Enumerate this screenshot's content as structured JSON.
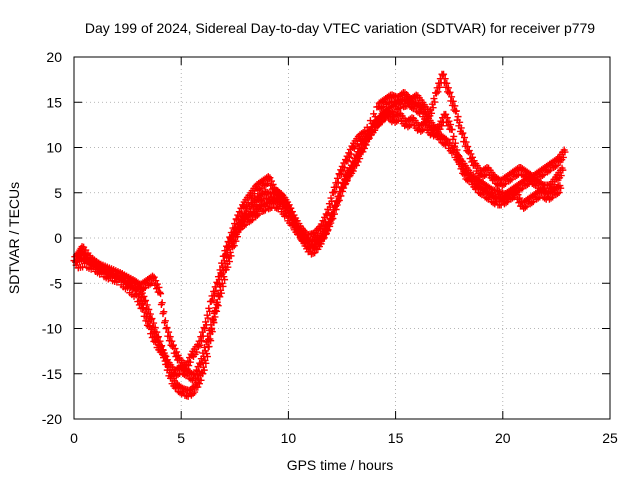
{
  "chart_data": {
    "type": "scatter",
    "title": "Day 199 of 2024, Sidereal Day-to-day VTEC variation (SDTVAR) for receiver p779",
    "xlabel": "GPS time / hours",
    "ylabel": "SDTVAR / TECUs",
    "xlim": [
      0,
      25
    ],
    "ylim": [
      -20,
      20
    ],
    "x_ticks": [
      0,
      5,
      10,
      15,
      20,
      25
    ],
    "y_ticks": [
      -20,
      -15,
      -10,
      -5,
      0,
      5,
      10,
      15,
      20
    ],
    "x_tick_labels": [
      "0",
      "5",
      "10",
      "15",
      "20",
      "25"
    ],
    "y_tick_labels": [
      "-20",
      "-15",
      "-10",
      "-5",
      "0",
      "5",
      "10",
      "15",
      "20"
    ],
    "grid": true,
    "marker": "+",
    "color": "#ff0000",
    "series": [
      {
        "points": [
          [
            0.0,
            -2.5
          ],
          [
            0.3,
            -1.8
          ],
          [
            0.6,
            -2.2
          ],
          [
            1.0,
            -3.0
          ],
          [
            1.4,
            -3.5
          ],
          [
            1.8,
            -4.0
          ],
          [
            2.2,
            -4.2
          ],
          [
            2.6,
            -4.8
          ],
          [
            3.0,
            -5.5
          ],
          [
            3.3,
            -7.0
          ],
          [
            3.6,
            -9.0
          ],
          [
            3.9,
            -11.0
          ],
          [
            4.2,
            -13.0
          ],
          [
            4.5,
            -15.5
          ],
          [
            4.8,
            -16.5
          ],
          [
            5.1,
            -17.0
          ],
          [
            5.4,
            -17.2
          ],
          [
            5.7,
            -16.5
          ],
          [
            6.0,
            -15.0
          ],
          [
            6.3,
            -12.0
          ],
          [
            6.6,
            -8.0
          ],
          [
            6.9,
            -4.0
          ],
          [
            7.2,
            -1.0
          ],
          [
            7.5,
            0.5
          ],
          [
            7.8,
            1.5
          ],
          [
            8.1,
            2.0
          ],
          [
            8.4,
            2.5
          ],
          [
            8.7,
            3.2
          ],
          [
            9.0,
            3.5
          ],
          [
            9.3,
            3.8
          ],
          [
            9.6,
            3.5
          ],
          [
            9.9,
            2.5
          ],
          [
            10.2,
            1.5
          ],
          [
            10.5,
            0.5
          ],
          [
            10.8,
            -0.5
          ],
          [
            11.1,
            -0.8
          ],
          [
            11.4,
            -0.5
          ],
          [
            11.7,
            0.5
          ],
          [
            12.0,
            2.0
          ],
          [
            12.3,
            4.0
          ],
          [
            12.6,
            6.0
          ],
          [
            12.9,
            7.5
          ],
          [
            13.2,
            9.0
          ],
          [
            13.5,
            10.5
          ],
          [
            13.8,
            11.5
          ],
          [
            14.1,
            12.5
          ],
          [
            14.4,
            13.5
          ],
          [
            14.7,
            14.0
          ],
          [
            15.0,
            14.5
          ],
          [
            15.3,
            14.8
          ],
          [
            15.6,
            15.0
          ],
          [
            15.9,
            14.5
          ],
          [
            16.2,
            14.0
          ],
          [
            16.5,
            13.0
          ],
          [
            16.8,
            12.0
          ],
          [
            17.1,
            11.0
          ],
          [
            17.4,
            10.5
          ],
          [
            17.7,
            9.5
          ],
          [
            18.0,
            8.5
          ],
          [
            18.3,
            7.5
          ],
          [
            18.6,
            6.5
          ],
          [
            18.9,
            6.0
          ],
          [
            19.2,
            5.5
          ],
          [
            19.5,
            5.0
          ],
          [
            19.8,
            4.8
          ],
          [
            20.1,
            4.5
          ],
          [
            20.4,
            5.0
          ],
          [
            20.7,
            5.5
          ],
          [
            21.0,
            6.0
          ],
          [
            21.3,
            6.5
          ],
          [
            21.6,
            6.0
          ],
          [
            21.9,
            5.5
          ],
          [
            22.2,
            5.5
          ],
          [
            22.5,
            6.5
          ],
          [
            22.8,
            7.5
          ]
        ]
      },
      {
        "points": [
          [
            0.1,
            -3.0
          ],
          [
            0.5,
            -2.8
          ],
          [
            0.9,
            -3.2
          ],
          [
            1.3,
            -3.8
          ],
          [
            1.7,
            -4.3
          ],
          [
            2.1,
            -4.6
          ],
          [
            2.5,
            -5.5
          ],
          [
            2.9,
            -6.3
          ],
          [
            3.2,
            -7.8
          ],
          [
            3.5,
            -9.8
          ],
          [
            3.8,
            -11.5
          ],
          [
            4.1,
            -12.5
          ],
          [
            4.4,
            -14.0
          ],
          [
            4.7,
            -15.0
          ],
          [
            5.0,
            -14.5
          ],
          [
            5.3,
            -15.0
          ],
          [
            5.6,
            -15.5
          ],
          [
            5.9,
            -14.0
          ],
          [
            6.2,
            -11.5
          ],
          [
            6.5,
            -9.0
          ],
          [
            6.8,
            -6.5
          ],
          [
            7.1,
            -3.5
          ],
          [
            7.4,
            -1.0
          ],
          [
            7.7,
            1.0
          ],
          [
            8.0,
            2.5
          ],
          [
            8.3,
            3.5
          ],
          [
            8.6,
            4.2
          ],
          [
            8.9,
            4.8
          ],
          [
            9.2,
            4.5
          ],
          [
            9.5,
            4.8
          ],
          [
            9.8,
            4.0
          ],
          [
            10.1,
            2.8
          ],
          [
            10.4,
            1.0
          ],
          [
            10.7,
            -0.2
          ],
          [
            11.0,
            -1.5
          ],
          [
            11.3,
            -1.2
          ],
          [
            11.6,
            0.0
          ],
          [
            11.9,
            1.5
          ],
          [
            12.2,
            3.5
          ],
          [
            12.5,
            5.5
          ],
          [
            12.8,
            7.0
          ],
          [
            13.1,
            8.0
          ],
          [
            13.4,
            9.5
          ],
          [
            13.7,
            11.0
          ],
          [
            14.0,
            12.5
          ],
          [
            14.3,
            13.0
          ],
          [
            14.6,
            13.8
          ],
          [
            14.9,
            13.0
          ],
          [
            15.2,
            13.5
          ],
          [
            15.5,
            12.5
          ],
          [
            15.8,
            13.0
          ],
          [
            16.1,
            12.0
          ],
          [
            16.4,
            12.5
          ],
          [
            16.7,
            11.5
          ],
          [
            17.0,
            12.0
          ],
          [
            17.3,
            13.5
          ],
          [
            17.6,
            12.0
          ],
          [
            17.9,
            9.0
          ],
          [
            18.2,
            7.0
          ],
          [
            18.5,
            6.5
          ],
          [
            18.8,
            5.5
          ],
          [
            19.1,
            5.0
          ],
          [
            19.4,
            4.5
          ],
          [
            19.7,
            4.0
          ],
          [
            20.0,
            4.0
          ],
          [
            20.3,
            4.5
          ],
          [
            20.6,
            5.0
          ],
          [
            20.9,
            3.5
          ],
          [
            21.2,
            4.0
          ],
          [
            21.5,
            4.5
          ],
          [
            21.8,
            5.0
          ],
          [
            22.1,
            4.5
          ],
          [
            22.4,
            5.0
          ],
          [
            22.7,
            5.5
          ]
        ]
      },
      {
        "points": [
          [
            0.2,
            -2.0
          ],
          [
            0.4,
            -1.2
          ],
          [
            0.8,
            -2.5
          ],
          [
            1.2,
            -3.2
          ],
          [
            1.6,
            -3.6
          ],
          [
            2.0,
            -4.0
          ],
          [
            2.4,
            -4.5
          ],
          [
            2.8,
            -5.0
          ],
          [
            3.1,
            -5.5
          ],
          [
            3.4,
            -5.0
          ],
          [
            3.7,
            -4.5
          ],
          [
            4.0,
            -6.0
          ],
          [
            4.3,
            -10.0
          ],
          [
            4.6,
            -12.0
          ],
          [
            4.9,
            -13.5
          ],
          [
            5.2,
            -14.5
          ],
          [
            5.5,
            -13.0
          ],
          [
            5.8,
            -12.0
          ],
          [
            6.1,
            -10.0
          ],
          [
            6.4,
            -7.0
          ],
          [
            6.7,
            -5.0
          ],
          [
            7.0,
            -2.0
          ],
          [
            7.3,
            0.0
          ],
          [
            7.6,
            2.0
          ],
          [
            7.9,
            3.5
          ],
          [
            8.2,
            4.5
          ],
          [
            8.5,
            5.5
          ],
          [
            8.8,
            6.0
          ],
          [
            9.1,
            6.5
          ],
          [
            9.4,
            5.0
          ],
          [
            9.7,
            4.5
          ],
          [
            10.0,
            3.5
          ],
          [
            10.3,
            2.0
          ],
          [
            10.6,
            0.8
          ],
          [
            10.9,
            0.0
          ],
          [
            11.2,
            0.2
          ],
          [
            11.5,
            1.0
          ],
          [
            11.8,
            2.5
          ],
          [
            12.1,
            5.0
          ],
          [
            12.4,
            7.0
          ],
          [
            12.7,
            8.5
          ],
          [
            13.0,
            10.0
          ],
          [
            13.3,
            11.0
          ],
          [
            13.6,
            11.5
          ],
          [
            14.2,
            14.5
          ],
          [
            14.5,
            15.0
          ],
          [
            14.8,
            15.5
          ],
          [
            15.1,
            15.2
          ],
          [
            15.4,
            15.8
          ],
          [
            15.7,
            15.0
          ],
          [
            16.0,
            15.5
          ],
          [
            16.3,
            14.5
          ],
          [
            16.6,
            13.5
          ],
          [
            16.9,
            16.0
          ],
          [
            17.2,
            18.0
          ],
          [
            17.5,
            16.0
          ],
          [
            17.8,
            14.0
          ],
          [
            18.1,
            11.5
          ],
          [
            18.4,
            9.5
          ],
          [
            18.7,
            8.0
          ],
          [
            19.0,
            7.0
          ],
          [
            19.3,
            7.5
          ],
          [
            19.6,
            6.5
          ],
          [
            19.9,
            6.0
          ],
          [
            20.2,
            6.5
          ],
          [
            20.5,
            7.0
          ],
          [
            20.8,
            7.5
          ],
          [
            21.1,
            7.0
          ],
          [
            21.4,
            6.5
          ],
          [
            21.7,
            7.0
          ],
          [
            22.0,
            7.5
          ],
          [
            22.3,
            8.0
          ],
          [
            22.6,
            8.5
          ],
          [
            22.9,
            9.5
          ]
        ]
      }
    ]
  }
}
